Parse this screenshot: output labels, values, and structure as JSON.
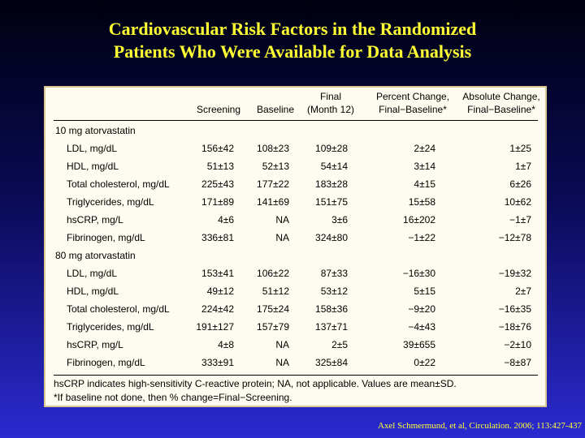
{
  "title": {
    "line1": "Cardiovascular Risk Factors in the Randomized",
    "line2": "Patients Who Were Available for Data Analysis"
  },
  "table": {
    "headers": {
      "screening": "Screening",
      "baseline": "Baseline",
      "final_l1": "Final",
      "final_l2": "(Month 12)",
      "pct_l1": "Percent Change,",
      "pct_l2": "Final−Baseline*",
      "abs_l1": "Absolute Change,",
      "abs_l2": "Final−Baseline*"
    },
    "groups": [
      {
        "label": "10 mg atorvastatin",
        "rows": [
          [
            "LDL, mg/dL",
            "156±42",
            "108±23",
            "109±28",
            "2±24",
            "1±25"
          ],
          [
            "HDL, mg/dL",
            "51±13",
            "52±13",
            "54±14",
            "3±14",
            "1±7"
          ],
          [
            "Total cholesterol, mg/dL",
            "225±43",
            "177±22",
            "183±28",
            "4±15",
            "6±26"
          ],
          [
            "Triglycerides, mg/dL",
            "171±89",
            "141±69",
            "151±75",
            "15±58",
            "10±62"
          ],
          [
            "hsCRP, mg/L",
            "4±6",
            "NA",
            "3±6",
            "16±202",
            "−1±7"
          ],
          [
            "Fibrinogen, mg/dL",
            "336±81",
            "NA",
            "324±80",
            "−1±22",
            "−12±78"
          ]
        ]
      },
      {
        "label": "80 mg atorvastatin",
        "rows": [
          [
            "LDL, mg/dL",
            "153±41",
            "106±22",
            "87±33",
            "−16±30",
            "−19±32"
          ],
          [
            "HDL, mg/dL",
            "49±12",
            "51±12",
            "53±12",
            "5±15",
            "2±7"
          ],
          [
            "Total cholesterol, mg/dL",
            "224±42",
            "175±24",
            "158±36",
            "−9±20",
            "−16±35"
          ],
          [
            "Triglycerides, mg/dL",
            "191±127",
            "157±79",
            "137±71",
            "−4±43",
            "−18±76"
          ],
          [
            "hsCRP, mg/L",
            "4±8",
            "NA",
            "2±5",
            "39±655",
            "−2±10"
          ],
          [
            "Fibrinogen, mg/dL",
            "333±91",
            "NA",
            "325±84",
            "0±22",
            "−8±87"
          ]
        ]
      }
    ],
    "footnote1": "hsCRP indicates high-sensitivity C-reactive protein; NA, not applicable. Values are mean±SD.",
    "footnote2": "*If baseline not done, then % change=Final−Screening."
  },
  "credit": "Axel Schmermund, et al, Circulation.  2006; 113:427-437"
}
